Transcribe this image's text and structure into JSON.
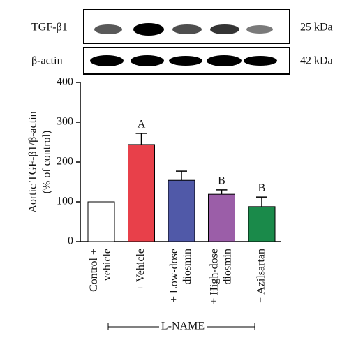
{
  "blot": {
    "rows": [
      {
        "label": "TGF-β1",
        "size": "25 kDa"
      },
      {
        "label": "β-actin",
        "size": "42 kDa"
      }
    ]
  },
  "chart_data": {
    "type": "bar",
    "ylabel": [
      "Aortic TGF-β1/β-actin",
      "(% of control)"
    ],
    "categories": [
      [
        "Control +",
        "vehicle"
      ],
      [
        "+ Vehicle"
      ],
      [
        "+ Low-dose",
        "diosmin"
      ],
      [
        "+ High-dose",
        "diosmin"
      ],
      [
        "+ Azilsartan"
      ]
    ],
    "values": [
      100,
      244,
      154,
      119,
      88
    ],
    "errors": [
      null,
      28,
      23,
      11,
      24
    ],
    "significance": [
      null,
      "A",
      null,
      "B",
      "B"
    ],
    "colors": [
      "#ffffff",
      "#e8404a",
      "#5059a8",
      "#9b5ea8",
      "#1a8a4a"
    ],
    "group_label": "L-NAME",
    "ylim": [
      0,
      400
    ],
    "yticks": [
      0,
      100,
      200,
      300,
      400
    ]
  }
}
